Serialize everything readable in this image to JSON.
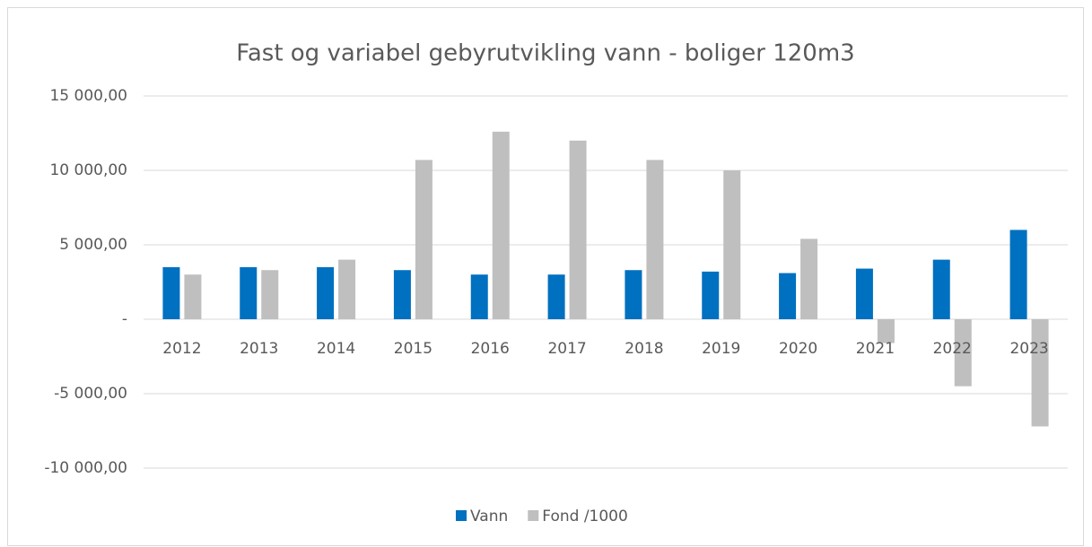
{
  "chart_data": {
    "type": "bar",
    "title": "Fast og variabel gebyrutvikling vann - boliger 120m3",
    "categories": [
      "2012",
      "2013",
      "2014",
      "2015",
      "2016",
      "2017",
      "2018",
      "2019",
      "2020",
      "2021",
      "2022",
      "2023"
    ],
    "series": [
      {
        "name": "Vann",
        "color": "#0070c0",
        "values": [
          3500,
          3500,
          3500,
          3300,
          3000,
          3000,
          3300,
          3200,
          3100,
          3400,
          4000,
          6000
        ]
      },
      {
        "name": "Fond /1000",
        "color": "#bfbfbf",
        "values": [
          3000,
          3300,
          4000,
          10700,
          12600,
          12000,
          10700,
          10000,
          5400,
          -1600,
          -4500,
          -7200
        ]
      }
    ],
    "ylim": [
      -10000,
      15000
    ],
    "yticks": [
      {
        "value": -10000,
        "label": "-10 000,00"
      },
      {
        "value": -5000,
        "label": "-5 000,00"
      },
      {
        "value": 0,
        "label": "-"
      },
      {
        "value": 5000,
        "label": "5 000,00"
      },
      {
        "value": 10000,
        "label": "10 000,00"
      },
      {
        "value": 15000,
        "label": "15 000,00"
      }
    ],
    "grid": true
  }
}
